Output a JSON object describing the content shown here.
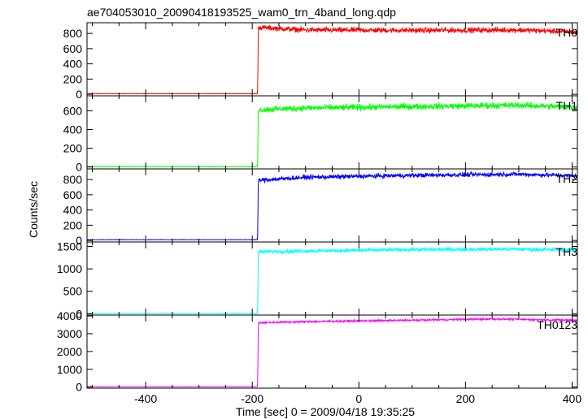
{
  "chart_data": {
    "type": "line",
    "title": "ae704053010_20090418193525_wam0_trn_4band_long.qdp",
    "xlabel": "Time [sec] 0 = 2009/04/18 19:35:25",
    "ylabel": "Counts/sec",
    "xlim": [
      -510,
      410
    ],
    "x_ticks": [
      -400,
      -200,
      0,
      200,
      400
    ],
    "grid": false,
    "onset_time": -190,
    "series": [
      {
        "name": "TH0",
        "color": "#ff0000",
        "ylim": [
          -20,
          940
        ],
        "y_ticks": [
          0,
          200,
          400,
          600,
          800
        ],
        "pre_level": 8,
        "peak": 900,
        "level": 840,
        "noise": 30,
        "slow_trend": [
          [
            -190,
            880
          ],
          [
            -100,
            845
          ],
          [
            100,
            840
          ],
          [
            300,
            845
          ],
          [
            400,
            820
          ]
        ]
      },
      {
        "name": "TH1",
        "color": "#00ff00",
        "ylim": [
          -20,
          760
        ],
        "y_ticks": [
          0,
          200,
          400,
          600
        ],
        "pre_level": 5,
        "peak": 700,
        "level": 630,
        "noise": 28,
        "slow_trend": [
          [
            -190,
            610
          ],
          [
            -100,
            630
          ],
          [
            100,
            645
          ],
          [
            300,
            660
          ],
          [
            400,
            640
          ]
        ]
      },
      {
        "name": "TH2",
        "color": "#0000ff",
        "ylim": [
          -20,
          940
        ],
        "y_ticks": [
          0,
          200,
          400,
          600,
          800
        ],
        "pre_level": 10,
        "peak": 880,
        "level": 840,
        "noise": 25,
        "slow_trend": [
          [
            -190,
            790
          ],
          [
            -100,
            830
          ],
          [
            100,
            855
          ],
          [
            300,
            870
          ],
          [
            400,
            850
          ]
        ]
      },
      {
        "name": "TH3",
        "color": "#00ffff",
        "ylim": [
          -30,
          1600
        ],
        "y_ticks": [
          0,
          500,
          1000,
          1500
        ],
        "pre_level": 5,
        "peak": 1450,
        "level": 1420,
        "noise": 35,
        "slow_trend": [
          [
            -190,
            1380
          ],
          [
            -100,
            1400
          ],
          [
            100,
            1430
          ],
          [
            300,
            1440
          ],
          [
            400,
            1420
          ]
        ]
      },
      {
        "name": "TH0123",
        "color": "#ff00ff",
        "ylim": [
          -60,
          4050
        ],
        "y_ticks": [
          0,
          1000,
          2000,
          3000,
          4000
        ],
        "pre_level": 25,
        "peak": 3800,
        "level": 3700,
        "noise": 45,
        "slow_trend": [
          [
            -190,
            3620
          ],
          [
            -100,
            3680
          ],
          [
            100,
            3760
          ],
          [
            250,
            3830
          ],
          [
            400,
            3760
          ]
        ]
      }
    ]
  }
}
